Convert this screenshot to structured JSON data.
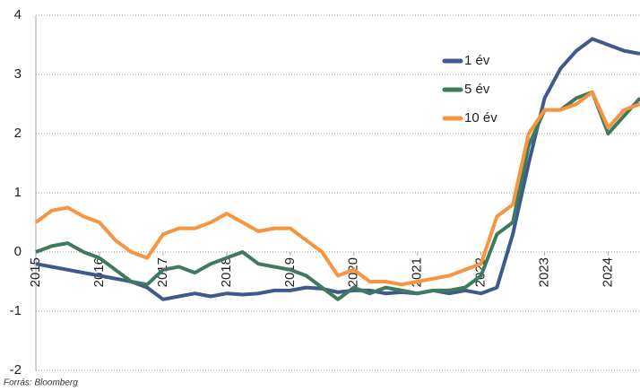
{
  "chart_data": {
    "type": "line",
    "source": "Forrás: Bloomberg",
    "x": [
      2015,
      2015.25,
      2015.5,
      2015.75,
      2016,
      2016.25,
      2016.5,
      2016.75,
      2017,
      2017.25,
      2017.5,
      2017.75,
      2018,
      2018.25,
      2018.5,
      2018.75,
      2019,
      2019.25,
      2019.5,
      2019.75,
      2020,
      2020.25,
      2020.5,
      2020.75,
      2021,
      2021.25,
      2021.5,
      2021.75,
      2022,
      2022.25,
      2022.5,
      2022.75,
      2023,
      2023.25,
      2023.5,
      2023.75,
      2024,
      2024.25,
      2024.5
    ],
    "series": [
      {
        "name": "1 év",
        "color": "#3e5a8c",
        "values": [
          -0.2,
          -0.25,
          -0.3,
          -0.35,
          -0.4,
          -0.45,
          -0.5,
          -0.6,
          -0.8,
          -0.75,
          -0.7,
          -0.75,
          -0.7,
          -0.72,
          -0.7,
          -0.65,
          -0.65,
          -0.6,
          -0.62,
          -0.68,
          -0.65,
          -0.65,
          -0.7,
          -0.68,
          -0.7,
          -0.65,
          -0.7,
          -0.65,
          -0.7,
          -0.6,
          0.3,
          1.5,
          2.6,
          3.1,
          3.4,
          3.6,
          3.5,
          3.4,
          3.35
        ]
      },
      {
        "name": "5 év",
        "color": "#3d7a5e",
        "values": [
          0.0,
          0.1,
          0.15,
          0.0,
          -0.1,
          -0.3,
          -0.5,
          -0.55,
          -0.3,
          -0.25,
          -0.35,
          -0.2,
          -0.1,
          0.0,
          -0.2,
          -0.25,
          -0.3,
          -0.4,
          -0.6,
          -0.8,
          -0.6,
          -0.7,
          -0.6,
          -0.65,
          -0.7,
          -0.65,
          -0.65,
          -0.6,
          -0.4,
          0.3,
          0.5,
          1.8,
          2.4,
          2.4,
          2.6,
          2.7,
          2.0,
          2.3,
          2.6
        ]
      },
      {
        "name": "10 év",
        "color": "#f7943e",
        "values": [
          0.5,
          0.7,
          0.75,
          0.6,
          0.5,
          0.2,
          0.0,
          -0.1,
          0.3,
          0.4,
          0.4,
          0.5,
          0.65,
          0.5,
          0.35,
          0.4,
          0.4,
          0.2,
          0.0,
          -0.4,
          -0.3,
          -0.5,
          -0.5,
          -0.55,
          -0.5,
          -0.45,
          -0.4,
          -0.3,
          -0.2,
          0.6,
          0.8,
          2.0,
          2.4,
          2.4,
          2.5,
          2.7,
          2.1,
          2.4,
          2.5
        ]
      }
    ],
    "xlim": [
      2015,
      2024.5
    ],
    "xticks": [
      2015,
      2016,
      2017,
      2018,
      2019,
      2020,
      2021,
      2022,
      2023,
      2024
    ],
    "ylim": [
      -2,
      4
    ],
    "yticks": [
      -2,
      -1,
      0,
      1,
      2,
      3,
      4
    ],
    "grid": true,
    "legend": "top-right"
  }
}
